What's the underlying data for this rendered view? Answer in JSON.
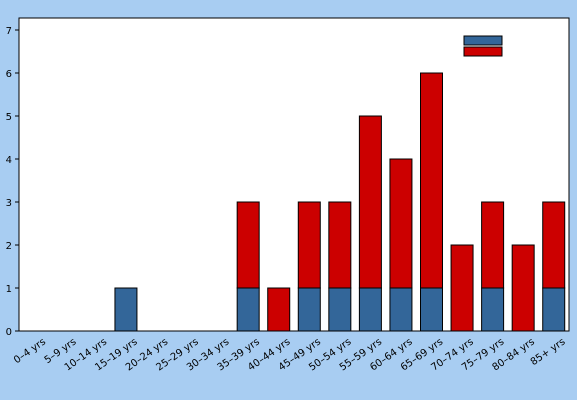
{
  "colors": {
    "background": "#a8cdf2",
    "plot_bg": "#ffffff",
    "series1": "#336699",
    "series2": "#cc0000"
  },
  "chart_data": {
    "type": "bar",
    "stacked": true,
    "title": "",
    "xlabel": "",
    "ylabel": "",
    "categories": [
      "0–4 yrs",
      "5–9 yrs",
      "10–14 yrs",
      "15–19 yrs",
      "20–24 yrs",
      "25–29 yrs",
      "30–34 yrs",
      "35–39 yrs",
      "40–44 yrs",
      "45–49 yrs",
      "50–54 yrs",
      "55–59 yrs",
      "60–64 yrs",
      "65–69 yrs",
      "70–74 yrs",
      "75–79 yrs",
      "80–84 yrs",
      "85+ yrs"
    ],
    "series": [
      {
        "color": "#336699",
        "values": [
          0,
          0,
          0,
          1,
          0,
          0,
          0,
          1,
          0,
          1,
          1,
          1,
          1,
          1,
          0,
          1,
          0,
          1
        ]
      },
      {
        "color": "#cc0000",
        "values": [
          0,
          0,
          0,
          0,
          0,
          0,
          0,
          2,
          1,
          2,
          2,
          4,
          3,
          5,
          2,
          2,
          2,
          2
        ]
      }
    ],
    "yticks": [
      0,
      1,
      2,
      3,
      4,
      5,
      6,
      7
    ],
    "ylim": [
      0,
      7
    ],
    "grid": false,
    "legend": {
      "position": "top-right",
      "entries": [
        "",
        ""
      ]
    }
  }
}
